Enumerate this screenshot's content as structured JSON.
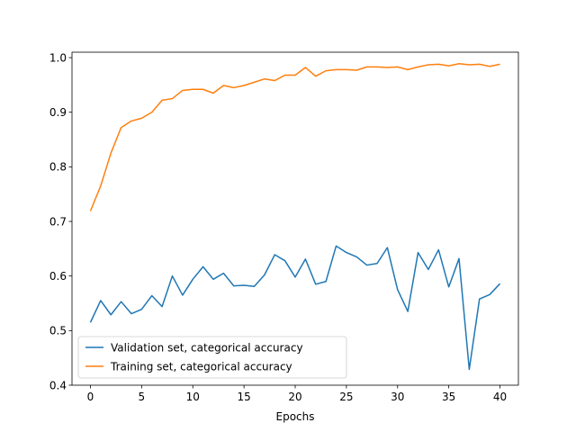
{
  "chart_data": {
    "type": "line",
    "title": "",
    "xlabel": "Epochs",
    "ylabel": "",
    "xlim": [
      -1.8,
      41.8
    ],
    "ylim": [
      0.4,
      1.01
    ],
    "xticks": [
      0,
      5,
      10,
      15,
      20,
      25,
      30,
      35,
      40
    ],
    "yticks": [
      0.4,
      0.5,
      0.6,
      0.7,
      0.8,
      0.9,
      1.0
    ],
    "xtick_labels": [
      "0",
      "5",
      "10",
      "15",
      "20",
      "25",
      "30",
      "35",
      "40"
    ],
    "ytick_labels": [
      "0.4",
      "0.5",
      "0.6",
      "0.7",
      "0.8",
      "0.9",
      "1.0"
    ],
    "grid": false,
    "legend_position": "lower-left",
    "x": [
      0,
      1,
      2,
      3,
      4,
      5,
      6,
      7,
      8,
      9,
      10,
      11,
      12,
      13,
      14,
      15,
      16,
      17,
      18,
      19,
      20,
      21,
      22,
      23,
      24,
      25,
      26,
      27,
      28,
      29,
      30,
      31,
      32,
      33,
      34,
      35,
      36,
      37,
      38,
      39,
      40
    ],
    "series": [
      {
        "name": "Validation set, categorical accuracy",
        "color": "#1f77b4",
        "values": [
          0.515,
          0.555,
          0.529,
          0.553,
          0.531,
          0.539,
          0.564,
          0.544,
          0.6,
          0.565,
          0.594,
          0.617,
          0.594,
          0.605,
          0.582,
          0.583,
          0.581,
          0.602,
          0.639,
          0.628,
          0.598,
          0.631,
          0.585,
          0.59,
          0.655,
          0.643,
          0.635,
          0.62,
          0.623,
          0.652,
          0.575,
          0.535,
          0.643,
          0.612,
          0.648,
          0.58,
          0.632,
          0.429,
          0.558,
          0.566,
          0.586
        ]
      },
      {
        "name": "Training set, categorical accuracy",
        "color": "#ff7f0e",
        "values": [
          0.719,
          0.765,
          0.825,
          0.872,
          0.884,
          0.889,
          0.9,
          0.922,
          0.925,
          0.94,
          0.942,
          0.942,
          0.935,
          0.949,
          0.945,
          0.949,
          0.955,
          0.961,
          0.958,
          0.968,
          0.968,
          0.982,
          0.966,
          0.976,
          0.978,
          0.978,
          0.977,
          0.983,
          0.983,
          0.982,
          0.983,
          0.978,
          0.983,
          0.987,
          0.988,
          0.985,
          0.989,
          0.987,
          0.988,
          0.984,
          0.988
        ]
      }
    ]
  }
}
